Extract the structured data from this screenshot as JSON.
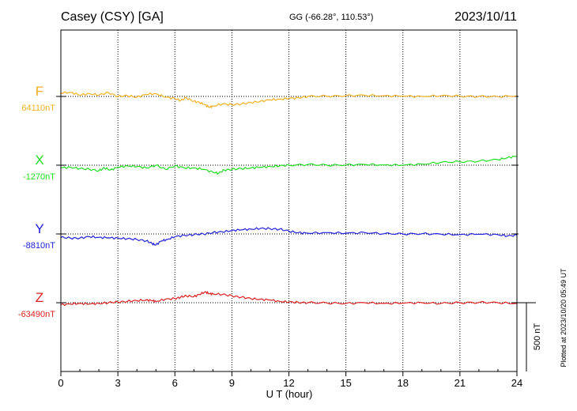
{
  "header": {
    "station": "Casey (CSY)  [GA]",
    "coords": "GG (-66.28°, 110.53°)",
    "date": "2023/10/11"
  },
  "side_note": "Plotted at 2023/10/20 05:49 UT",
  "chart_data": {
    "type": "line",
    "title": "Casey (CSY)  [GA]",
    "xlabel": "U T (hour)",
    "xlim": [
      0,
      24
    ],
    "xticks": [
      "0",
      "3",
      "6",
      "9",
      "12",
      "15",
      "18",
      "21",
      "24"
    ],
    "scale_bar_label": "500 nT",
    "scale_bar_nT": 500,
    "grid": "vertical dotted every 3 hours; dotted baseline per component",
    "series": [
      {
        "name": "F",
        "baseline_label": "64110nT",
        "baseline_nT": 64110,
        "color": "#f0b020",
        "x": [
          0,
          0.5,
          1,
          1.5,
          2,
          2.5,
          3,
          3.5,
          4,
          4.5,
          5,
          5.5,
          6,
          6.3,
          6.6,
          7,
          7.3,
          7.6,
          7.8,
          8,
          8.5,
          9,
          9.5,
          10,
          10.5,
          11,
          11.5,
          12,
          12.5,
          13,
          14,
          15,
          16,
          17,
          18,
          19,
          20,
          21,
          22,
          23,
          24
        ],
        "values": [
          64135,
          64140,
          64120,
          64130,
          64120,
          64138,
          64110,
          64115,
          64105,
          64125,
          64130,
          64105,
          64095,
          64080,
          64100,
          64075,
          64065,
          64050,
          64030,
          64040,
          64055,
          64050,
          64055,
          64065,
          64075,
          64085,
          64090,
          64095,
          64100,
          64110,
          64112,
          64115,
          64118,
          64115,
          64112,
          64110,
          64115,
          64112,
          64110,
          64108,
          64115
        ]
      },
      {
        "name": "X",
        "baseline_label": "-1270nT",
        "baseline_nT": -1270,
        "color": "#20dd20",
        "x": [
          0,
          0.5,
          1,
          1.5,
          2,
          2.3,
          2.6,
          3,
          3.5,
          4,
          4.5,
          5,
          5.5,
          6,
          6.5,
          7,
          7.5,
          8,
          8.3,
          8.6,
          9,
          9.5,
          10,
          10.5,
          11,
          11.5,
          12,
          13,
          14,
          15,
          16,
          17,
          18,
          19,
          20,
          21,
          22,
          23,
          23.5,
          24
        ],
        "values": [
          -1290,
          -1285,
          -1295,
          -1300,
          -1310,
          -1290,
          -1305,
          -1285,
          -1275,
          -1280,
          -1290,
          -1270,
          -1300,
          -1275,
          -1290,
          -1290,
          -1300,
          -1320,
          -1330,
          -1305,
          -1300,
          -1295,
          -1290,
          -1285,
          -1280,
          -1275,
          -1270,
          -1265,
          -1270,
          -1268,
          -1265,
          -1268,
          -1270,
          -1262,
          -1250,
          -1245,
          -1240,
          -1230,
          -1215,
          -1205
        ]
      },
      {
        "name": "Y",
        "baseline_label": "-8810nT",
        "baseline_nT": -8810,
        "color": "#2020dd",
        "x": [
          0,
          0.5,
          1,
          1.5,
          2,
          2.5,
          3,
          3.5,
          4,
          4.5,
          4.8,
          5,
          5.3,
          5.6,
          6,
          6.5,
          7,
          7.5,
          8,
          8.5,
          9,
          9.5,
          10,
          10.5,
          11,
          11.5,
          12,
          12.5,
          13,
          14,
          15,
          16,
          17,
          18,
          19,
          20,
          21,
          22,
          23,
          23.5,
          24
        ],
        "values": [
          -8835,
          -8840,
          -8840,
          -8830,
          -8835,
          -8838,
          -8840,
          -8845,
          -8850,
          -8860,
          -8880,
          -8890,
          -8860,
          -8850,
          -8830,
          -8820,
          -8815,
          -8810,
          -8800,
          -8795,
          -8785,
          -8780,
          -8775,
          -8770,
          -8772,
          -8775,
          -8790,
          -8800,
          -8805,
          -8800,
          -8805,
          -8800,
          -8808,
          -8810,
          -8808,
          -8812,
          -8815,
          -8812,
          -8815,
          -8825,
          -8820
        ]
      },
      {
        "name": "Z",
        "baseline_label": "-63490nT",
        "baseline_nT": -63490,
        "color": "#dd2020",
        "x": [
          0,
          0.5,
          1,
          1.5,
          2,
          2.5,
          3,
          3.5,
          4,
          4.5,
          4.8,
          5,
          5.5,
          6,
          6.3,
          6.6,
          7,
          7.3,
          7.6,
          7.8,
          8,
          8.5,
          9,
          9.5,
          10,
          10.5,
          11,
          11.5,
          12,
          12.5,
          13,
          14,
          15,
          16,
          17,
          18,
          19,
          20,
          21,
          22,
          23,
          24
        ],
        "values": [
          -63505,
          -63500,
          -63495,
          -63500,
          -63495,
          -63490,
          -63485,
          -63480,
          -63475,
          -63470,
          -63475,
          -63480,
          -63465,
          -63460,
          -63450,
          -63440,
          -63445,
          -63430,
          -63410,
          -63425,
          -63425,
          -63430,
          -63440,
          -63450,
          -63460,
          -63465,
          -63470,
          -63480,
          -63485,
          -63488,
          -63490,
          -63492,
          -63495,
          -63490,
          -63495,
          -63493,
          -63490,
          -63495,
          -63490,
          -63488,
          -63490,
          -63495
        ]
      }
    ]
  }
}
